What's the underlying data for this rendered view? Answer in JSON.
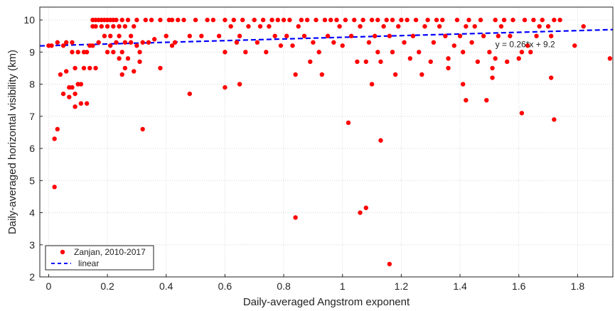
{
  "chart_data": {
    "type": "scatter",
    "xlabel": "Daily-averaged Angstrom exponent",
    "ylabel": "Daily-averaged horizontal visibility (km)",
    "xlim": [
      -0.03,
      1.92
    ],
    "ylim": [
      2,
      10.4
    ],
    "xticks": [
      "0",
      "0.2",
      "0.4",
      "0.6",
      "0.8",
      "1",
      "1.2",
      "1.4",
      "1.6",
      "1.8"
    ],
    "yticks": [
      "2",
      "3",
      "4",
      "5",
      "6",
      "7",
      "8",
      "9",
      "10"
    ],
    "grid": true,
    "legend_position": "bottom-left",
    "annotation": "y = 0.26*x + 9.2",
    "series": [
      {
        "name": "Zanjan, 2010-2017",
        "kind": "points",
        "color": "#ff0000",
        "points": [
          [
            0.0,
            9.2
          ],
          [
            0.01,
            9.2
          ],
          [
            0.02,
            6.3
          ],
          [
            0.02,
            4.8
          ],
          [
            0.03,
            6.6
          ],
          [
            0.03,
            9.3
          ],
          [
            0.04,
            8.3
          ],
          [
            0.05,
            7.7
          ],
          [
            0.05,
            9.2
          ],
          [
            0.06,
            8.4
          ],
          [
            0.06,
            9.3
          ],
          [
            0.07,
            7.9
          ],
          [
            0.07,
            7.6
          ],
          [
            0.08,
            7.9
          ],
          [
            0.08,
            9.0
          ],
          [
            0.08,
            9.3
          ],
          [
            0.09,
            7.3
          ],
          [
            0.09,
            7.7
          ],
          [
            0.09,
            8.5
          ],
          [
            0.1,
            8.0
          ],
          [
            0.1,
            9.0
          ],
          [
            0.11,
            7.4
          ],
          [
            0.11,
            8.0
          ],
          [
            0.12,
            9.0
          ],
          [
            0.12,
            8.5
          ],
          [
            0.13,
            9.0
          ],
          [
            0.13,
            7.4
          ],
          [
            0.14,
            9.2
          ],
          [
            0.14,
            8.5
          ],
          [
            0.15,
            9.2
          ],
          [
            0.15,
            9.8
          ],
          [
            0.15,
            10.0
          ],
          [
            0.16,
            8.5
          ],
          [
            0.16,
            9.8
          ],
          [
            0.16,
            10.0
          ],
          [
            0.17,
            9.3
          ],
          [
            0.17,
            10.0
          ],
          [
            0.18,
            9.8
          ],
          [
            0.18,
            10.0
          ],
          [
            0.19,
            9.5
          ],
          [
            0.19,
            10.0
          ],
          [
            0.2,
            9.0
          ],
          [
            0.2,
            9.8
          ],
          [
            0.2,
            10.0
          ],
          [
            0.21,
            9.2
          ],
          [
            0.21,
            9.5
          ],
          [
            0.21,
            10.0
          ],
          [
            0.22,
            9.0
          ],
          [
            0.22,
            9.8
          ],
          [
            0.22,
            10.0
          ],
          [
            0.23,
            9.3
          ],
          [
            0.23,
            10.0
          ],
          [
            0.24,
            8.8
          ],
          [
            0.24,
            9.5
          ],
          [
            0.24,
            9.8
          ],
          [
            0.25,
            8.3
          ],
          [
            0.25,
            9.0
          ],
          [
            0.25,
            10.0
          ],
          [
            0.26,
            8.5
          ],
          [
            0.26,
            9.3
          ],
          [
            0.26,
            9.8
          ],
          [
            0.27,
            8.8
          ],
          [
            0.27,
            10.0
          ],
          [
            0.28,
            9.5
          ],
          [
            0.28,
            9.3
          ],
          [
            0.29,
            8.4
          ],
          [
            0.29,
            9.8
          ],
          [
            0.3,
            9.2
          ],
          [
            0.3,
            10.0
          ],
          [
            0.31,
            9.0
          ],
          [
            0.31,
            8.7
          ],
          [
            0.32,
            6.6
          ],
          [
            0.32,
            9.3
          ],
          [
            0.33,
            10.0
          ],
          [
            0.34,
            9.3
          ],
          [
            0.35,
            10.0
          ],
          [
            0.36,
            9.4
          ],
          [
            0.38,
            8.5
          ],
          [
            0.38,
            10.0
          ],
          [
            0.4,
            9.5
          ],
          [
            0.41,
            10.0
          ],
          [
            0.42,
            9.2
          ],
          [
            0.42,
            10.0
          ],
          [
            0.43,
            9.3
          ],
          [
            0.44,
            10.0
          ],
          [
            0.46,
            10.0
          ],
          [
            0.48,
            7.7
          ],
          [
            0.48,
            9.5
          ],
          [
            0.5,
            10.0
          ],
          [
            0.52,
            9.5
          ],
          [
            0.54,
            10.0
          ],
          [
            0.56,
            10.0
          ],
          [
            0.58,
            9.5
          ],
          [
            0.6,
            7.9
          ],
          [
            0.6,
            9.0
          ],
          [
            0.6,
            10.0
          ],
          [
            0.62,
            9.8
          ],
          [
            0.63,
            10.0
          ],
          [
            0.64,
            9.3
          ],
          [
            0.65,
            8.0
          ],
          [
            0.65,
            9.5
          ],
          [
            0.66,
            10.0
          ],
          [
            0.67,
            9.0
          ],
          [
            0.68,
            9.8
          ],
          [
            0.7,
            10.0
          ],
          [
            0.71,
            9.3
          ],
          [
            0.72,
            9.8
          ],
          [
            0.73,
            10.0
          ],
          [
            0.74,
            9.0
          ],
          [
            0.75,
            9.8
          ],
          [
            0.76,
            10.0
          ],
          [
            0.77,
            9.5
          ],
          [
            0.78,
            10.0
          ],
          [
            0.79,
            9.2
          ],
          [
            0.8,
            10.0
          ],
          [
            0.81,
            9.5
          ],
          [
            0.82,
            10.0
          ],
          [
            0.83,
            9.2
          ],
          [
            0.84,
            8.3
          ],
          [
            0.84,
            3.85
          ],
          [
            0.85,
            9.8
          ],
          [
            0.86,
            10.0
          ],
          [
            0.87,
            9.5
          ],
          [
            0.88,
            10.0
          ],
          [
            0.89,
            8.7
          ],
          [
            0.9,
            9.3
          ],
          [
            0.91,
            10.0
          ],
          [
            0.92,
            9.0
          ],
          [
            0.93,
            8.3
          ],
          [
            0.94,
            10.0
          ],
          [
            0.95,
            9.5
          ],
          [
            0.96,
            10.0
          ],
          [
            0.97,
            9.3
          ],
          [
            0.98,
            10.0
          ],
          [
            0.99,
            9.8
          ],
          [
            1.0,
            9.2
          ],
          [
            1.01,
            10.0
          ],
          [
            1.02,
            6.8
          ],
          [
            1.03,
            9.5
          ],
          [
            1.04,
            10.0
          ],
          [
            1.05,
            8.7
          ],
          [
            1.06,
            4.0
          ],
          [
            1.06,
            9.8
          ],
          [
            1.07,
            10.0
          ],
          [
            1.08,
            4.15
          ],
          [
            1.08,
            8.7
          ],
          [
            1.09,
            9.3
          ],
          [
            1.1,
            8.0
          ],
          [
            1.1,
            10.0
          ],
          [
            1.11,
            9.5
          ],
          [
            1.12,
            9.0
          ],
          [
            1.12,
            10.0
          ],
          [
            1.13,
            6.25
          ],
          [
            1.13,
            8.7
          ],
          [
            1.14,
            9.8
          ],
          [
            1.15,
            10.0
          ],
          [
            1.16,
            2.4
          ],
          [
            1.16,
            9.5
          ],
          [
            1.17,
            9.0
          ],
          [
            1.17,
            10.0
          ],
          [
            1.18,
            8.3
          ],
          [
            1.19,
            9.8
          ],
          [
            1.2,
            10.0
          ],
          [
            1.21,
            9.3
          ],
          [
            1.22,
            10.0
          ],
          [
            1.23,
            8.8
          ],
          [
            1.24,
            9.5
          ],
          [
            1.25,
            10.0
          ],
          [
            1.26,
            9.0
          ],
          [
            1.27,
            8.3
          ],
          [
            1.28,
            9.8
          ],
          [
            1.29,
            10.0
          ],
          [
            1.3,
            8.7
          ],
          [
            1.31,
            9.3
          ],
          [
            1.32,
            10.0
          ],
          [
            1.33,
            9.8
          ],
          [
            1.34,
            10.0
          ],
          [
            1.35,
            9.5
          ],
          [
            1.36,
            8.5
          ],
          [
            1.36,
            8.8
          ],
          [
            1.38,
            9.2
          ],
          [
            1.39,
            10.0
          ],
          [
            1.4,
            9.5
          ],
          [
            1.41,
            8.0
          ],
          [
            1.41,
            9.0
          ],
          [
            1.42,
            7.5
          ],
          [
            1.42,
            9.8
          ],
          [
            1.43,
            10.0
          ],
          [
            1.44,
            9.3
          ],
          [
            1.45,
            9.8
          ],
          [
            1.46,
            8.7
          ],
          [
            1.47,
            10.0
          ],
          [
            1.48,
            9.5
          ],
          [
            1.49,
            7.5
          ],
          [
            1.5,
            9.0
          ],
          [
            1.51,
            8.2
          ],
          [
            1.51,
            8.5
          ],
          [
            1.52,
            8.8
          ],
          [
            1.52,
            10.0
          ],
          [
            1.53,
            9.5
          ],
          [
            1.54,
            9.8
          ],
          [
            1.55,
            10.0
          ],
          [
            1.56,
            8.7
          ],
          [
            1.57,
            9.5
          ],
          [
            1.58,
            10.0
          ],
          [
            1.6,
            8.8
          ],
          [
            1.61,
            7.1
          ],
          [
            1.61,
            9.0
          ],
          [
            1.62,
            10.0
          ],
          [
            1.63,
            9.2
          ],
          [
            1.64,
            9.0
          ],
          [
            1.65,
            10.0
          ],
          [
            1.66,
            9.5
          ],
          [
            1.67,
            9.8
          ],
          [
            1.68,
            10.0
          ],
          [
            1.7,
            9.8
          ],
          [
            1.71,
            8.2
          ],
          [
            1.71,
            9.5
          ],
          [
            1.72,
            6.9
          ],
          [
            1.72,
            10.0
          ],
          [
            1.74,
            10.0
          ],
          [
            1.79,
            9.2
          ],
          [
            1.82,
            9.8
          ],
          [
            1.91,
            8.8
          ]
        ]
      },
      {
        "name": "linear",
        "kind": "line",
        "color": "#0000ff",
        "dash": true,
        "slope": 0.26,
        "intercept": 9.2
      }
    ]
  }
}
